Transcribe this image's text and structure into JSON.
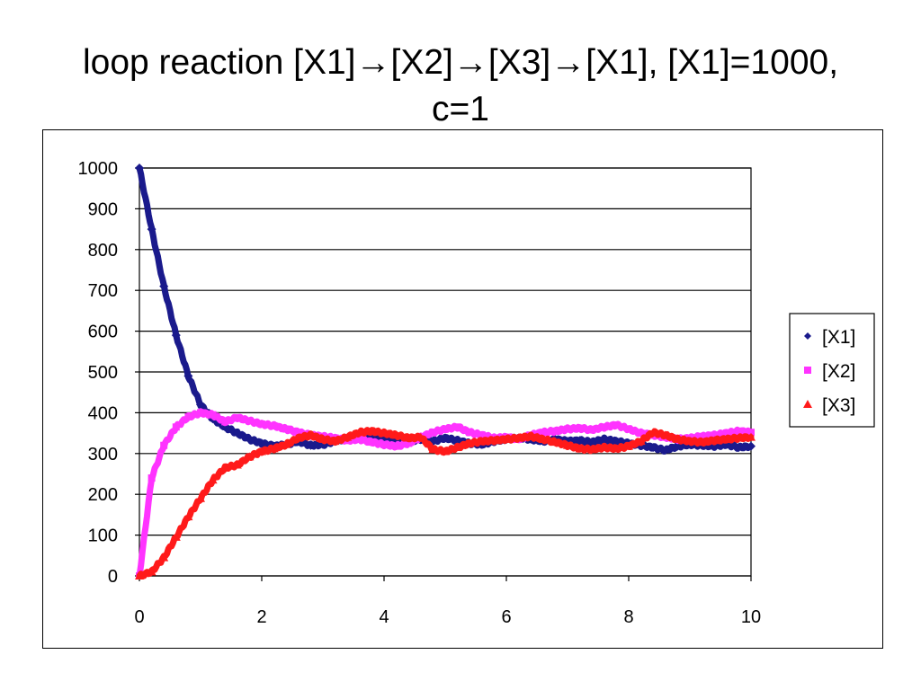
{
  "title": {
    "line1": "loop reaction [X1]→[X2]→[X3]→[X1], [X1]=1000,",
    "line2": "c=1"
  },
  "chart_data": {
    "type": "line",
    "x_ticks": [
      "0",
      "2",
      "4",
      "6",
      "8",
      "10"
    ],
    "y_ticks": [
      "0",
      "100",
      "200",
      "300",
      "400",
      "500",
      "600",
      "700",
      "800",
      "900",
      "1000"
    ],
    "xlim": [
      0,
      10
    ],
    "ylim": [
      0,
      1000
    ],
    "grid": "horizontal",
    "legend_position": "right",
    "x": [
      0,
      0.2,
      0.4,
      0.6,
      0.8,
      1.0,
      1.2,
      1.4,
      1.6,
      1.8,
      2.0,
      2.2,
      2.4,
      2.6,
      2.8,
      3.0,
      3.2,
      3.4,
      3.6,
      3.8,
      4.0,
      4.2,
      4.4,
      4.6,
      4.8,
      5.0,
      5.2,
      5.4,
      5.6,
      5.8,
      6.0,
      6.2,
      6.4,
      6.6,
      6.8,
      7.0,
      7.2,
      7.4,
      7.6,
      7.8,
      8.0,
      8.2,
      8.4,
      8.6,
      8.8,
      9.0,
      9.2,
      9.4,
      9.6,
      9.8,
      10.0
    ],
    "series": [
      {
        "name": "[X1]",
        "color": "#1a1a8c",
        "marker": "diamond",
        "values": [
          1000,
          850,
          710,
          590,
          490,
          420,
          385,
          365,
          350,
          335,
          325,
          318,
          322,
          330,
          320,
          322,
          330,
          338,
          340,
          336,
          335,
          332,
          330,
          335,
          330,
          338,
          332,
          325,
          322,
          330,
          335,
          338,
          335,
          330,
          335,
          330,
          332,
          328,
          335,
          330,
          325,
          320,
          315,
          308,
          318,
          322,
          320,
          318,
          322,
          315,
          318
        ]
      },
      {
        "name": "[X2]",
        "color": "#ff33ff",
        "marker": "square",
        "values": [
          0,
          240,
          320,
          365,
          390,
          400,
          395,
          378,
          388,
          380,
          372,
          368,
          360,
          352,
          345,
          342,
          338,
          332,
          335,
          328,
          322,
          318,
          325,
          340,
          352,
          360,
          365,
          352,
          345,
          338,
          340,
          335,
          345,
          352,
          355,
          360,
          362,
          358,
          365,
          370,
          360,
          350,
          345,
          340,
          335,
          338,
          342,
          345,
          350,
          355,
          352
        ]
      },
      {
        "name": "[X3]",
        "color": "#ff1a1a",
        "marker": "triangle",
        "values": [
          0,
          10,
          45,
          95,
          145,
          190,
          235,
          265,
          272,
          292,
          305,
          312,
          322,
          338,
          345,
          335,
          330,
          340,
          352,
          355,
          350,
          345,
          338,
          340,
          310,
          305,
          315,
          325,
          330,
          332,
          335,
          338,
          342,
          335,
          328,
          320,
          312,
          310,
          315,
          312,
          318,
          330,
          352,
          345,
          335,
          330,
          328,
          332,
          335,
          338,
          340
        ]
      }
    ]
  }
}
